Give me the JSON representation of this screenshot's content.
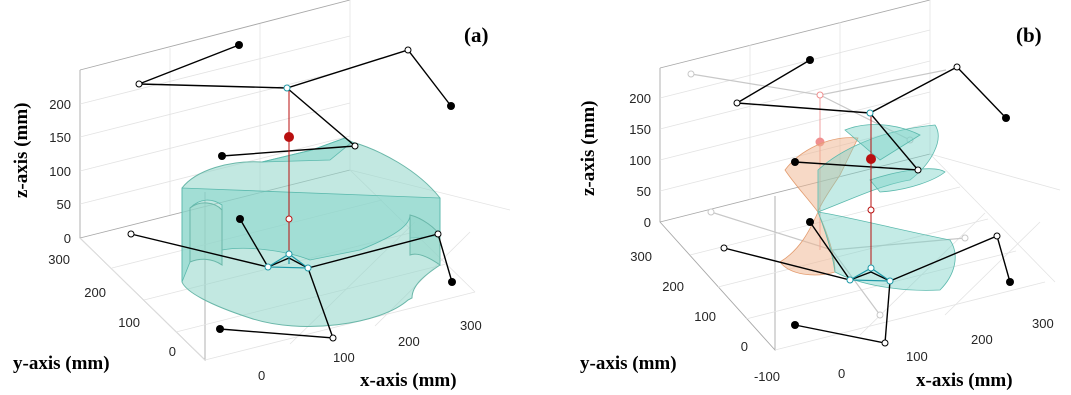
{
  "panels": [
    {
      "label": "(a)",
      "zlabel": "z-axis  (mm)",
      "ylabel": "y-axis  (mm)",
      "xlabel": "x-axis  (mm)",
      "zticks": [
        "0",
        "50",
        "100",
        "150",
        "200"
      ],
      "yticks": [
        "0",
        "100",
        "200",
        "300"
      ],
      "xticks": [
        "0",
        "100",
        "200",
        "300"
      ]
    },
    {
      "label": "(b)",
      "zlabel": "z-axis  (mm)",
      "ylabel": "y-axis  (mm)",
      "xlabel": "x-axis  (mm)",
      "zticks": [
        "0",
        "50",
        "100",
        "150",
        "200"
      ],
      "yticks": [
        "-100",
        "0",
        "100",
        "200",
        "300"
      ],
      "xticks": [
        "0",
        "100",
        "200",
        "300"
      ]
    }
  ],
  "colors": {
    "workspace": "#8fd6c9",
    "workspace_alt": "#f0b48e",
    "platform": "#1f9aa8",
    "center_point": "#b80f0f",
    "joint": "#000000"
  }
}
